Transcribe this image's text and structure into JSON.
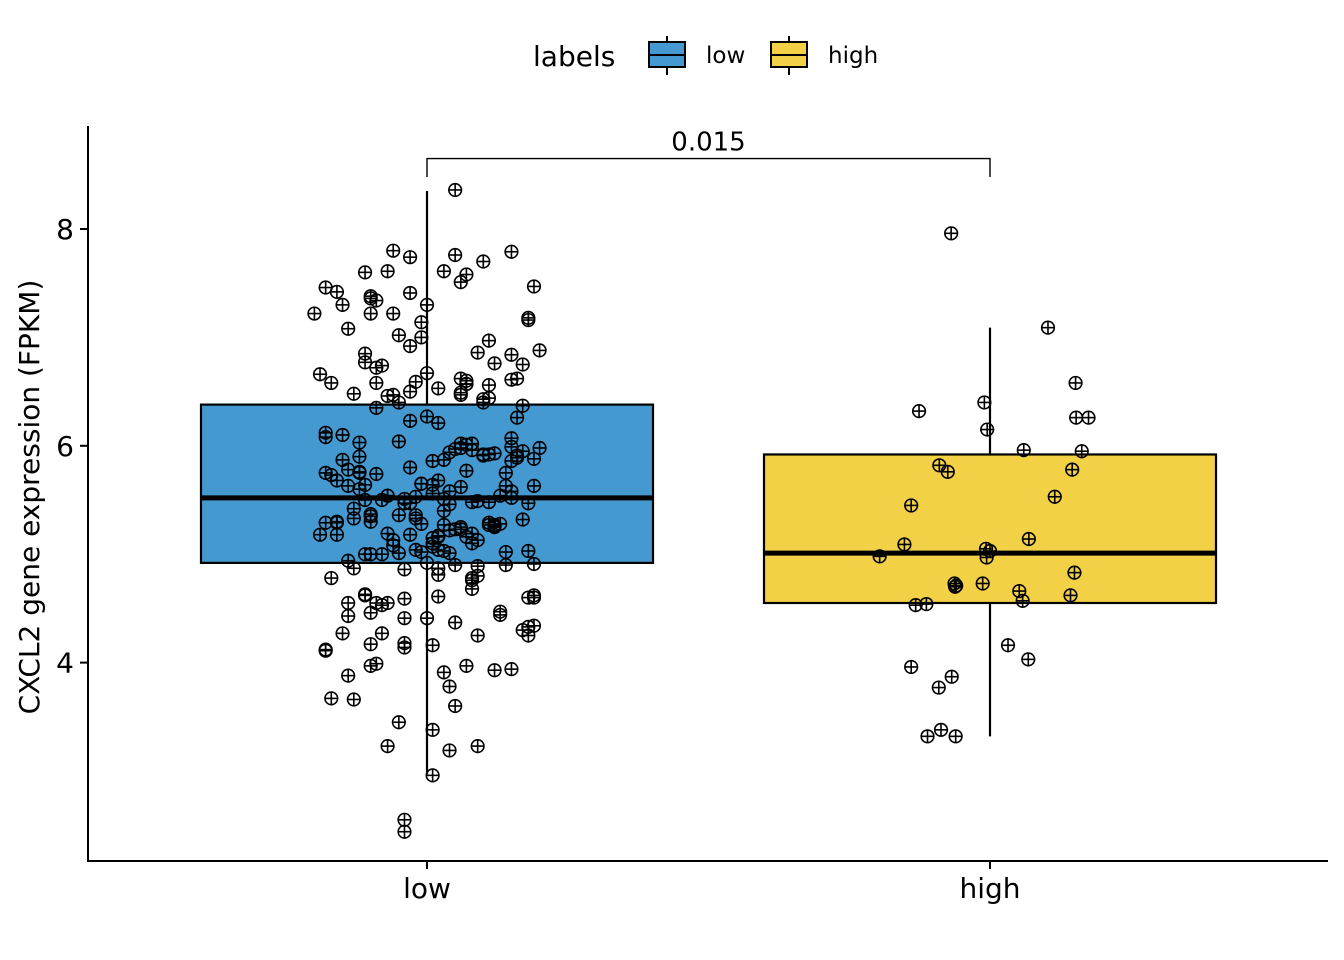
{
  "chart_data": {
    "type": "boxplot",
    "title": "",
    "xlabel": "",
    "ylabel": "CXCL2 gene expression (FPKM)",
    "ylim": [
      2.17,
      8.95
    ],
    "yticks": [
      4,
      6,
      8
    ],
    "legend": {
      "title": "labels",
      "position": "top",
      "entries": [
        {
          "label": "low",
          "color": "#4499D1"
        },
        {
          "label": "high",
          "color": "#F2D147"
        }
      ]
    },
    "annotation": {
      "text": "0.015",
      "between": [
        "low",
        "high"
      ],
      "bracket_y": 8.65,
      "tick_bottom": 8.48
    },
    "categories": [
      "low",
      "high"
    ],
    "series": [
      {
        "name": "low",
        "color": "#4499D1",
        "box": {
          "q1": 4.92,
          "median": 5.52,
          "q3": 6.38,
          "whisker_low": 2.97,
          "whisker_high": 8.35
        },
        "points": [
          [
            -0.2,
            7.22
          ],
          [
            -0.19,
            6.66
          ],
          [
            -0.19,
            5.18
          ],
          [
            -0.18,
            6.08
          ],
          [
            -0.18,
            4.11
          ],
          [
            -0.18,
            7.46
          ],
          [
            -0.18,
            6.12
          ],
          [
            -0.18,
            4.12
          ],
          [
            -0.18,
            5.29
          ],
          [
            -0.18,
            5.75
          ],
          [
            -0.17,
            4.78
          ],
          [
            -0.17,
            6.58
          ],
          [
            -0.17,
            5.73
          ],
          [
            -0.17,
            3.67
          ],
          [
            -0.16,
            5.68
          ],
          [
            -0.16,
            5.3
          ],
          [
            -0.16,
            5.18
          ],
          [
            -0.16,
            5.29
          ],
          [
            -0.16,
            7.42
          ],
          [
            -0.15,
            4.27
          ],
          [
            -0.15,
            7.3
          ],
          [
            -0.15,
            5.87
          ],
          [
            -0.15,
            6.1
          ],
          [
            -0.14,
            4.55
          ],
          [
            -0.14,
            3.88
          ],
          [
            -0.14,
            4.43
          ],
          [
            -0.14,
            5.63
          ],
          [
            -0.14,
            5.78
          ],
          [
            -0.14,
            7.08
          ],
          [
            -0.14,
            4.94
          ],
          [
            -0.13,
            4.87
          ],
          [
            -0.13,
            6.48
          ],
          [
            -0.13,
            5.42
          ],
          [
            -0.13,
            3.66
          ],
          [
            -0.13,
            5.33
          ],
          [
            -0.12,
            5.6
          ],
          [
            -0.12,
            5.76
          ],
          [
            -0.12,
            6.03
          ],
          [
            -0.12,
            5.9
          ],
          [
            -0.12,
            5.75
          ],
          [
            -0.11,
            7.6
          ],
          [
            -0.11,
            5.5
          ],
          [
            -0.11,
            5.0
          ],
          [
            -0.11,
            6.85
          ],
          [
            -0.11,
            6.77
          ],
          [
            -0.11,
            5.64
          ],
          [
            -0.11,
            4.63
          ],
          [
            -0.11,
            4.62
          ],
          [
            -0.1,
            5.35
          ],
          [
            -0.1,
            5.37
          ],
          [
            -0.1,
            4.46
          ],
          [
            -0.1,
            4.17
          ],
          [
            -0.1,
            7.36
          ],
          [
            -0.1,
            7.22
          ],
          [
            -0.1,
            7.38
          ],
          [
            -0.1,
            5.0
          ],
          [
            -0.1,
            3.97
          ],
          [
            -0.1,
            5.3
          ],
          [
            -0.09,
            5.74
          ],
          [
            -0.09,
            3.99
          ],
          [
            -0.09,
            6.35
          ],
          [
            -0.09,
            6.58
          ],
          [
            -0.09,
            6.72
          ],
          [
            -0.09,
            7.34
          ],
          [
            -0.09,
            4.55
          ],
          [
            -0.08,
            4.53
          ],
          [
            -0.08,
            4.27
          ],
          [
            -0.08,
            5.0
          ],
          [
            -0.08,
            5.5
          ],
          [
            -0.08,
            6.74
          ],
          [
            -0.07,
            6.46
          ],
          [
            -0.07,
            7.61
          ],
          [
            -0.07,
            5.54
          ],
          [
            -0.07,
            4.55
          ],
          [
            -0.07,
            3.23
          ],
          [
            -0.07,
            5.19
          ],
          [
            -0.07,
            5.54
          ],
          [
            -0.06,
            7.8
          ],
          [
            -0.06,
            6.47
          ],
          [
            -0.06,
            5.13
          ],
          [
            -0.06,
            5.08
          ],
          [
            -0.06,
            7.22
          ],
          [
            -0.05,
            3.45
          ],
          [
            -0.05,
            6.4
          ],
          [
            -0.05,
            7.02
          ],
          [
            -0.05,
            5.36
          ],
          [
            -0.05,
            5.01
          ],
          [
            -0.05,
            6.04
          ],
          [
            -0.04,
            4.59
          ],
          [
            -0.04,
            4.86
          ],
          [
            -0.04,
            2.44
          ],
          [
            -0.04,
            2.55
          ],
          [
            -0.04,
            4.14
          ],
          [
            -0.04,
            4.18
          ],
          [
            -0.04,
            5.51
          ],
          [
            -0.04,
            5.47
          ],
          [
            -0.04,
            4.41
          ],
          [
            -0.03,
            6.92
          ],
          [
            -0.03,
            7.41
          ],
          [
            -0.03,
            6.5
          ],
          [
            -0.03,
            6.23
          ],
          [
            -0.03,
            5.47
          ],
          [
            -0.03,
            5.18
          ],
          [
            -0.03,
            5.8
          ],
          [
            -0.03,
            7.74
          ],
          [
            -0.02,
            5.04
          ],
          [
            -0.02,
            5.36
          ],
          [
            -0.02,
            5.53
          ],
          [
            -0.02,
            5.33
          ],
          [
            -0.02,
            6.59
          ],
          [
            -0.01,
            7.14
          ],
          [
            -0.01,
            5.65
          ],
          [
            -0.01,
            7.0
          ],
          [
            -0.01,
            5.65
          ],
          [
            -0.01,
            5.28
          ],
          [
            -0.01,
            5.02
          ],
          [
            0.0,
            7.3
          ],
          [
            0.0,
            6.67
          ],
          [
            0.0,
            6.27
          ],
          [
            0.0,
            4.41
          ],
          [
            0.0,
            4.92
          ],
          [
            0.01,
            5.56
          ],
          [
            0.01,
            5.64
          ],
          [
            0.01,
            5.15
          ],
          [
            0.01,
            5.1
          ],
          [
            0.01,
            2.96
          ],
          [
            0.01,
            4.16
          ],
          [
            0.01,
            5.07
          ],
          [
            0.01,
            3.38
          ],
          [
            0.01,
            5.86
          ],
          [
            0.02,
            5.04
          ],
          [
            0.02,
            4.81
          ],
          [
            0.02,
            6.53
          ],
          [
            0.02,
            4.87
          ],
          [
            0.02,
            4.61
          ],
          [
            0.02,
            5.16
          ],
          [
            0.02,
            6.21
          ],
          [
            0.02,
            5.68
          ],
          [
            0.02,
            5.17
          ],
          [
            0.03,
            3.91
          ],
          [
            0.03,
            7.61
          ],
          [
            0.03,
            5.03
          ],
          [
            0.03,
            5.4
          ],
          [
            0.03,
            5.87
          ],
          [
            0.03,
            5.27
          ],
          [
            0.03,
            5.51
          ],
          [
            0.04,
            3.78
          ],
          [
            0.04,
            5.46
          ],
          [
            0.04,
            5.58
          ],
          [
            0.04,
            5.94
          ],
          [
            0.04,
            3.19
          ],
          [
            0.04,
            5.01
          ],
          [
            0.04,
            5.22
          ],
          [
            0.05,
            8.36
          ],
          [
            0.05,
            7.76
          ],
          [
            0.05,
            4.9
          ],
          [
            0.05,
            5.97
          ],
          [
            0.05,
            4.37
          ],
          [
            0.05,
            3.6
          ],
          [
            0.05,
            5.23
          ],
          [
            0.06,
            5.25
          ],
          [
            0.06,
            5.62
          ],
          [
            0.06,
            6.47
          ],
          [
            0.06,
            6.49
          ],
          [
            0.06,
            7.51
          ],
          [
            0.06,
            5.98
          ],
          [
            0.06,
            6.02
          ],
          [
            0.06,
            5.23
          ],
          [
            0.06,
            6.62
          ],
          [
            0.07,
            5.77
          ],
          [
            0.07,
            6.57
          ],
          [
            0.07,
            6.6
          ],
          [
            0.07,
            6.57
          ],
          [
            0.07,
            7.58
          ],
          [
            0.07,
            6.01
          ],
          [
            0.07,
            3.97
          ],
          [
            0.07,
            5.16
          ],
          [
            0.08,
            5.1
          ],
          [
            0.08,
            4.78
          ],
          [
            0.08,
            5.19
          ],
          [
            0.08,
            5.48
          ],
          [
            0.08,
            6.02
          ],
          [
            0.08,
            4.68
          ],
          [
            0.08,
            5.96
          ],
          [
            0.08,
            4.76
          ],
          [
            0.09,
            4.8
          ],
          [
            0.09,
            3.23
          ],
          [
            0.09,
            5.13
          ],
          [
            0.09,
            6.86
          ],
          [
            0.09,
            4.89
          ],
          [
            0.09,
            4.25
          ],
          [
            0.09,
            5.49
          ],
          [
            0.1,
            6.4
          ],
          [
            0.1,
            5.92
          ],
          [
            0.1,
            7.7
          ],
          [
            0.1,
            6.43
          ],
          [
            0.1,
            5.91
          ],
          [
            0.11,
            5.92
          ],
          [
            0.11,
            6.44
          ],
          [
            0.11,
            5.29
          ],
          [
            0.11,
            5.27
          ],
          [
            0.11,
            5.48
          ],
          [
            0.11,
            6.97
          ],
          [
            0.11,
            6.56
          ],
          [
            0.12,
            5.27
          ],
          [
            0.12,
            5.25
          ],
          [
            0.12,
            5.26
          ],
          [
            0.12,
            5.93
          ],
          [
            0.12,
            3.93
          ],
          [
            0.12,
            6.76
          ],
          [
            0.13,
            4.47
          ],
          [
            0.13,
            4.44
          ],
          [
            0.13,
            5.54
          ],
          [
            0.13,
            5.28
          ],
          [
            0.14,
            5.63
          ],
          [
            0.14,
            5.02
          ],
          [
            0.14,
            5.75
          ],
          [
            0.14,
            4.9
          ],
          [
            0.15,
            5.86
          ],
          [
            0.15,
            7.79
          ],
          [
            0.15,
            6.61
          ],
          [
            0.15,
            6.07
          ],
          [
            0.15,
            5.58
          ],
          [
            0.15,
            6.84
          ],
          [
            0.15,
            5.99
          ],
          [
            0.15,
            5.52
          ],
          [
            0.15,
            3.94
          ],
          [
            0.16,
            6.26
          ],
          [
            0.16,
            5.89
          ],
          [
            0.16,
            6.62
          ],
          [
            0.16,
            5.91
          ],
          [
            0.17,
            5.95
          ],
          [
            0.17,
            5.32
          ],
          [
            0.17,
            4.3
          ],
          [
            0.17,
            6.75
          ],
          [
            0.17,
            6.37
          ],
          [
            0.18,
            4.33
          ],
          [
            0.18,
            7.18
          ],
          [
            0.18,
            7.16
          ],
          [
            0.18,
            5.47
          ],
          [
            0.18,
            5.03
          ],
          [
            0.18,
            4.6
          ],
          [
            0.18,
            4.25
          ],
          [
            0.19,
            4.6
          ],
          [
            0.19,
            7.47
          ],
          [
            0.19,
            4.34
          ],
          [
            0.19,
            5.63
          ],
          [
            0.19,
            5.88
          ],
          [
            0.19,
            4.91
          ],
          [
            0.19,
            4.62
          ],
          [
            0.2,
            5.98
          ],
          [
            0.2,
            6.88
          ]
        ]
      },
      {
        "name": "high",
        "color": "#F2D147",
        "box": {
          "q1": 4.55,
          "median": 5.01,
          "q3": 5.92,
          "whisker_low": 3.32,
          "whisker_high": 7.09
        },
        "points": [
          [
            -0.196,
            4.98
          ],
          [
            -0.152,
            5.09
          ],
          [
            -0.14,
            3.96
          ],
          [
            -0.14,
            5.45
          ],
          [
            -0.132,
            4.53
          ],
          [
            -0.126,
            6.32
          ],
          [
            -0.113,
            4.54
          ],
          [
            -0.111,
            3.32
          ],
          [
            -0.091,
            3.77
          ],
          [
            -0.09,
            5.82
          ],
          [
            -0.087,
            3.38
          ],
          [
            -0.075,
            5.76
          ],
          [
            -0.068,
            3.87
          ],
          [
            -0.069,
            7.96
          ],
          [
            -0.063,
            4.73
          ],
          [
            -0.062,
            4.7
          ],
          [
            -0.06,
            4.71
          ],
          [
            -0.061,
            3.32
          ],
          [
            -0.013,
            4.73
          ],
          [
            -0.01,
            6.4
          ],
          [
            -0.007,
            5.05
          ],
          [
            -0.006,
            4.97
          ],
          [
            -0.005,
            6.15
          ],
          [
            0.0,
            5.03
          ],
          [
            0.032,
            4.16
          ],
          [
            0.052,
            4.66
          ],
          [
            0.058,
            4.57
          ],
          [
            0.06,
            5.96
          ],
          [
            0.068,
            4.03
          ],
          [
            0.069,
            5.14
          ],
          [
            0.103,
            7.09
          ],
          [
            0.115,
            5.53
          ],
          [
            0.143,
            4.62
          ],
          [
            0.146,
            5.78
          ],
          [
            0.15,
            4.83
          ],
          [
            0.152,
            6.58
          ],
          [
            0.153,
            6.26
          ],
          [
            0.163,
            5.95
          ],
          [
            0.175,
            6.26
          ]
        ]
      }
    ]
  }
}
